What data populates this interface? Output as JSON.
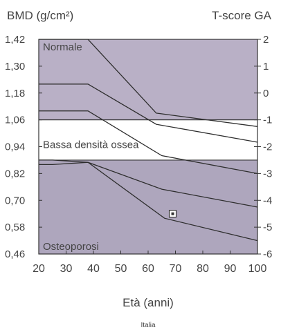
{
  "chart_data": {
    "type": "line",
    "left_axis_title": "BMD (g/cm²)",
    "right_axis_title": "T-score GA",
    "xlabel": "Età (anni)",
    "footer": "Italia",
    "xlim": [
      20,
      100
    ],
    "ylim": [
      0.46,
      1.42
    ],
    "right_ylim": [
      -6,
      2
    ],
    "x_ticks": [
      "20",
      "30",
      "40",
      "50",
      "60",
      "70",
      "80",
      "90",
      "100"
    ],
    "y_ticks": [
      "0,46",
      "0,58",
      "0,70",
      "0,82",
      "0,94",
      "1,06",
      "1,18",
      "1,30",
      "1,42"
    ],
    "right_ticks": [
      "-6",
      "-5",
      "-4",
      "-3",
      "-2",
      "-1",
      "0",
      "1",
      "2"
    ],
    "zones": [
      {
        "name": "Normale",
        "from": 1.06,
        "to": 1.42,
        "color": "#b9b0c6"
      },
      {
        "name": "Bassa densità ossea",
        "from": 0.88,
        "to": 1.06,
        "color": "#ffffff"
      },
      {
        "name": "Osteoporosi",
        "from": 0.46,
        "to": 0.88,
        "color": "#aea6bd"
      }
    ],
    "zone_label_colors": {
      "Normale": "#f2f0f7",
      "Bassa densità ossea": "#333333",
      "Osteoporosi": "#f2f0f7"
    },
    "threshold_lines": [
      1.06,
      0.88
    ],
    "curves": [
      {
        "x": [
          20,
          38,
          63,
          100
        ],
        "y": [
          1.42,
          1.42,
          1.09,
          1.03
        ]
      },
      {
        "x": [
          20,
          25,
          38,
          63,
          100
        ],
        "y": [
          1.22,
          1.22,
          1.22,
          1.04,
          0.96
        ]
      },
      {
        "x": [
          20,
          25,
          38,
          65,
          100
        ],
        "y": [
          1.1,
          1.1,
          1.1,
          0.9,
          0.82
        ]
      },
      {
        "x": [
          20,
          25,
          38,
          65,
          100
        ],
        "y": [
          0.88,
          0.88,
          0.87,
          0.75,
          0.67
        ]
      },
      {
        "x": [
          20,
          25,
          38,
          66,
          100
        ],
        "y": [
          0.86,
          0.86,
          0.87,
          0.62,
          0.52
        ]
      }
    ],
    "marker": {
      "x": 69,
      "y": 0.64
    }
  }
}
